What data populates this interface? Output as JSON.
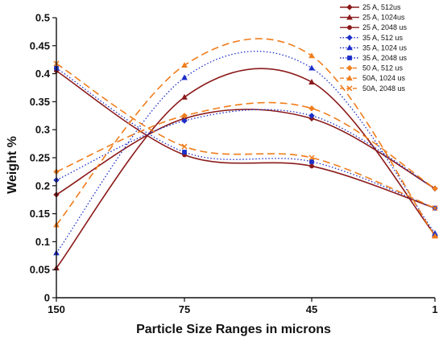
{
  "chart_data": {
    "type": "line",
    "title": "",
    "xlabel": "Particle Size Ranges in microns",
    "ylabel": "Weight %",
    "categories": [
      "150",
      "75",
      "45",
      "1"
    ],
    "yticks": [
      "0",
      "0.05",
      "0.1",
      "0.15",
      "0.2",
      "0.25",
      "0.3",
      "0.35",
      "0.4",
      "0.45",
      "0.5"
    ],
    "ylim": [
      0,
      0.5
    ],
    "grid": false,
    "legend_position": "top-right",
    "legend_box": false,
    "series": [
      {
        "name": "25 A, 512us",
        "color": "#8b1a1a",
        "dash": "solid",
        "marker": "diamond",
        "values": [
          0.184,
          0.32,
          0.32,
          0.195
        ]
      },
      {
        "name": "25 A, 1024us",
        "color": "#8b1a1a",
        "dash": "solid",
        "marker": "triangle",
        "values": [
          0.053,
          0.358,
          0.385,
          0.112
        ]
      },
      {
        "name": "25 A, 2048 us",
        "color": "#8b1a1a",
        "dash": "solid",
        "marker": "circle",
        "values": [
          0.405,
          0.255,
          0.235,
          0.16
        ]
      },
      {
        "name": "35 A, 512 us",
        "color": "#1c2fc9",
        "dash": "dot",
        "marker": "diamond",
        "values": [
          0.21,
          0.316,
          0.325,
          0.195
        ]
      },
      {
        "name": "35 A, 1024 us",
        "color": "#1c2fc9",
        "dash": "dot",
        "marker": "triangle",
        "values": [
          0.08,
          0.393,
          0.41,
          0.115
        ]
      },
      {
        "name": "35 A, 2048 us",
        "color": "#1c2fc9",
        "dash": "dot",
        "marker": "square",
        "values": [
          0.41,
          0.26,
          0.243,
          0.16
        ]
      },
      {
        "name": "50 A, 512 us",
        "color": "#f07d1c",
        "dash": "dash",
        "marker": "diamond",
        "values": [
          0.225,
          0.325,
          0.338,
          0.195
        ]
      },
      {
        "name": "50A, 1024 us",
        "color": "#f07d1c",
        "dash": "dash",
        "marker": "triangle",
        "values": [
          0.13,
          0.415,
          0.432,
          0.11
        ]
      },
      {
        "name": "50A, 2048 us",
        "color": "#f07d1c",
        "dash": "dash",
        "marker": "x",
        "values": [
          0.418,
          0.27,
          0.25,
          0.16
        ]
      }
    ]
  }
}
